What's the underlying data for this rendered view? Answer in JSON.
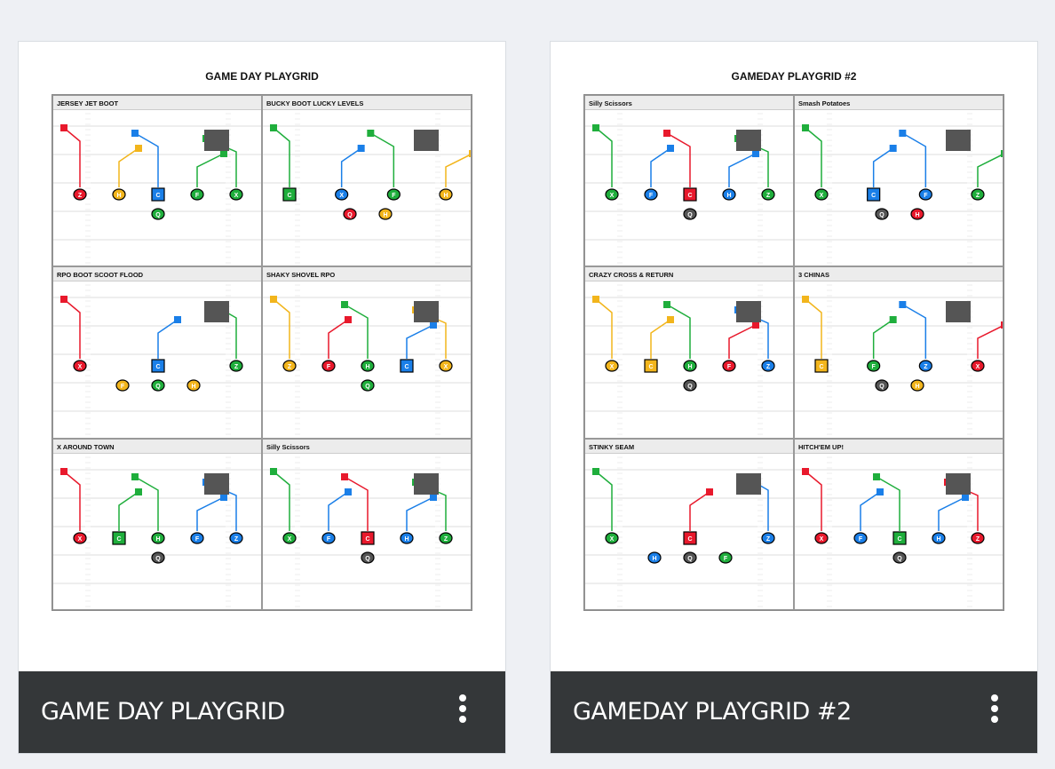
{
  "colors": {
    "red": "#e8192c",
    "yellow": "#f2b51c",
    "blue": "#1a7fe8",
    "green": "#1fae3c",
    "gray": "#555",
    "footer": "#343739"
  },
  "cards": [
    {
      "sheet_title": "GAME DAY PLAYGRID",
      "footer_title": "GAME DAY PLAYGRID",
      "menu_icon": "more-vertical-icon",
      "plays": [
        {
          "title": "JERSEY JET BOOT",
          "line": [
            [
              "Z",
              "red"
            ],
            [
              "H",
              "yellow"
            ],
            [
              "C",
              "blue",
              "sq"
            ],
            [
              "F",
              "green"
            ],
            [
              "X",
              "green"
            ]
          ],
          "back": [
            [
              "Q",
              "green"
            ]
          ]
        },
        {
          "title": "BUCKY BOOT LUCKY LEVELS",
          "line": [
            [
              "C",
              "green",
              "sq"
            ],
            [
              "X",
              "blue"
            ],
            [
              "F",
              "green"
            ],
            [
              "H",
              "yellow"
            ]
          ],
          "back": [
            [
              "Q",
              "red"
            ],
            [
              "H",
              "yellow"
            ]
          ]
        },
        {
          "title": "RPO BOOT SCOOT FLOOD",
          "line": [
            [
              "X",
              "red"
            ],
            [
              "C",
              "blue",
              "sq"
            ],
            [
              "Z",
              "green"
            ]
          ],
          "back": [
            [
              "F",
              "yellow"
            ],
            [
              "Q",
              "green"
            ],
            [
              "H",
              "yellow"
            ]
          ]
        },
        {
          "title": "SHAKY SHOVEL RPO",
          "line": [
            [
              "Z",
              "yellow"
            ],
            [
              "F",
              "red"
            ],
            [
              "H",
              "green"
            ],
            [
              "C",
              "blue",
              "sq"
            ],
            [
              "X",
              "yellow"
            ]
          ],
          "back": [
            [
              "Q",
              "green"
            ]
          ]
        },
        {
          "title": "X AROUND TOWN",
          "line": [
            [
              "X",
              "red"
            ],
            [
              "C",
              "green",
              "sq"
            ],
            [
              "H",
              "green"
            ],
            [
              "F",
              "blue"
            ],
            [
              "Z",
              "blue"
            ]
          ],
          "back": [
            [
              "Q",
              "gray"
            ]
          ]
        },
        {
          "title": "Silly Scissors",
          "line": [
            [
              "X",
              "green"
            ],
            [
              "F",
              "blue"
            ],
            [
              "C",
              "red",
              "sq"
            ],
            [
              "H",
              "blue"
            ],
            [
              "Z",
              "green"
            ]
          ],
          "back": [
            [
              "Q",
              "gray"
            ]
          ]
        }
      ]
    },
    {
      "sheet_title": "GAMEDAY PLAYGRID #2",
      "footer_title": "GAMEDAY PLAYGRID #2",
      "menu_icon": "more-vertical-icon",
      "plays": [
        {
          "title": "Silly Scissors",
          "line": [
            [
              "X",
              "green"
            ],
            [
              "F",
              "blue"
            ],
            [
              "C",
              "red",
              "sq"
            ],
            [
              "H",
              "blue"
            ],
            [
              "Z",
              "green"
            ]
          ],
          "back": [
            [
              "Q",
              "gray"
            ]
          ]
        },
        {
          "title": "Smash Potatoes",
          "line": [
            [
              "X",
              "green"
            ],
            [
              "C",
              "blue",
              "sq"
            ],
            [
              "F",
              "blue"
            ],
            [
              "Z",
              "green"
            ]
          ],
          "back": [
            [
              "Q",
              "gray"
            ],
            [
              "H",
              "red"
            ]
          ]
        },
        {
          "title": "CRAZY CROSS & RETURN",
          "line": [
            [
              "X",
              "yellow"
            ],
            [
              "C",
              "yellow",
              "sq"
            ],
            [
              "H",
              "green"
            ],
            [
              "F",
              "red"
            ],
            [
              "Z",
              "blue"
            ]
          ],
          "back": [
            [
              "Q",
              "gray"
            ]
          ]
        },
        {
          "title": "3 CHINAS",
          "line": [
            [
              "C",
              "yellow",
              "sq"
            ],
            [
              "F",
              "green"
            ],
            [
              "Z",
              "blue"
            ],
            [
              "X",
              "red"
            ]
          ],
          "back": [
            [
              "Q",
              "gray"
            ],
            [
              "H",
              "yellow"
            ]
          ]
        },
        {
          "title": "STINKY SEAM",
          "line": [
            [
              "X",
              "green"
            ],
            [
              "C",
              "red",
              "sq"
            ],
            [
              "Z",
              "blue"
            ]
          ],
          "back": [
            [
              "H",
              "blue"
            ],
            [
              "Q",
              "gray"
            ],
            [
              "F",
              "green"
            ]
          ]
        },
        {
          "title": "HITCH'EM UP!",
          "line": [
            [
              "X",
              "red"
            ],
            [
              "F",
              "blue"
            ],
            [
              "C",
              "green",
              "sq"
            ],
            [
              "H",
              "blue"
            ],
            [
              "Z",
              "red"
            ]
          ],
          "back": [
            [
              "Q",
              "gray"
            ]
          ]
        }
      ]
    }
  ]
}
